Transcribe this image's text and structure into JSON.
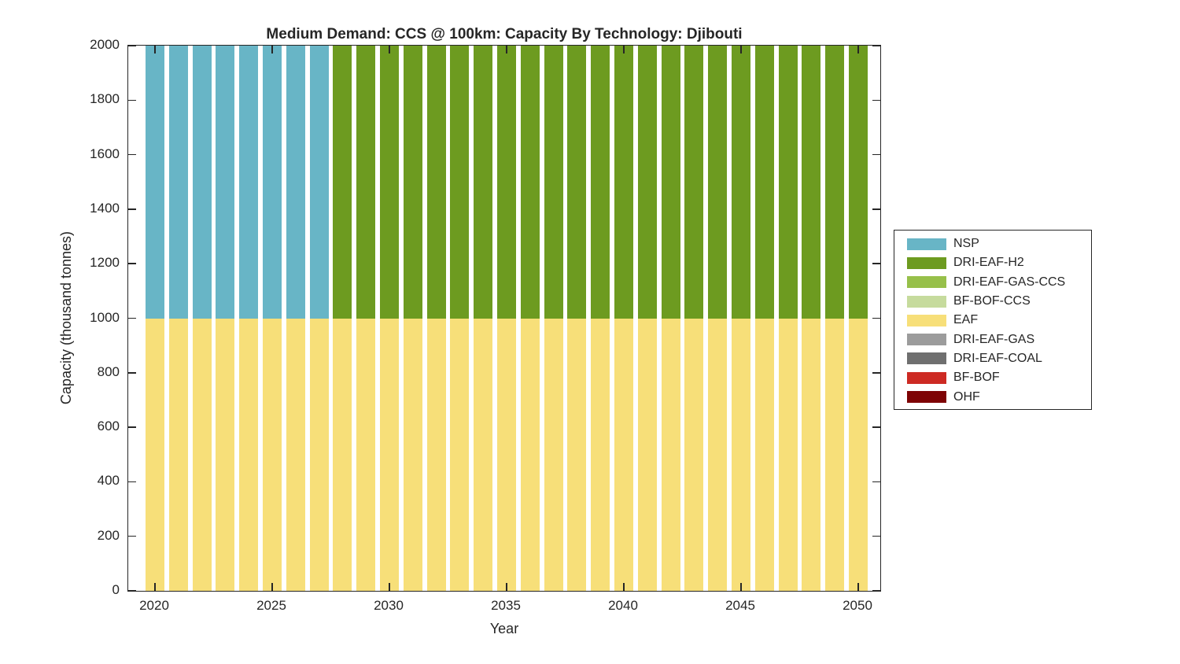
{
  "chart_data": {
    "type": "bar",
    "stacked": true,
    "title": "Medium Demand: CCS @ 100km: Capacity By Technology: Djibouti",
    "xlabel": "Year",
    "ylabel": "Capacity (thousand tonnes)",
    "grid": false,
    "legend_position": "right-outside",
    "ylim": [
      0,
      2000
    ],
    "xticks": [
      2020,
      2025,
      2030,
      2035,
      2040,
      2045,
      2050
    ],
    "yticks": [
      0,
      200,
      400,
      600,
      800,
      1000,
      1200,
      1400,
      1600,
      1800,
      2000
    ],
    "years": [
      2020,
      2021,
      2022,
      2023,
      2024,
      2025,
      2026,
      2027,
      2028,
      2029,
      2030,
      2031,
      2032,
      2033,
      2034,
      2035,
      2036,
      2037,
      2038,
      2039,
      2040,
      2041,
      2042,
      2043,
      2044,
      2045,
      2046,
      2047,
      2048,
      2049,
      2050
    ],
    "stack_order": [
      "EAF",
      "NSP",
      "DRI-EAF-H2",
      "DRI-EAF-GAS-CCS",
      "BF-BOF-CCS",
      "DRI-EAF-GAS",
      "DRI-EAF-COAL",
      "BF-BOF",
      "OHF"
    ],
    "axis_color": "#262626",
    "series": [
      {
        "name": "NSP",
        "color": "#68B5C6",
        "values": [
          1000,
          1000,
          1000,
          1000,
          1000,
          1000,
          1000,
          1000,
          0,
          0,
          0,
          0,
          0,
          0,
          0,
          0,
          0,
          0,
          0,
          0,
          0,
          0,
          0,
          0,
          0,
          0,
          0,
          0,
          0,
          0,
          0
        ]
      },
      {
        "name": "DRI-EAF-H2",
        "color": "#6D9B20",
        "values": [
          0,
          0,
          0,
          0,
          0,
          0,
          0,
          0,
          1000,
          1000,
          1000,
          1000,
          1000,
          1000,
          1000,
          1000,
          1000,
          1000,
          1000,
          1000,
          1000,
          1000,
          1000,
          1000,
          1000,
          1000,
          1000,
          1000,
          1000,
          1000,
          1000
        ]
      },
      {
        "name": "DRI-EAF-GAS-CCS",
        "color": "#97C04A",
        "values": [
          0,
          0,
          0,
          0,
          0,
          0,
          0,
          0,
          0,
          0,
          0,
          0,
          0,
          0,
          0,
          0,
          0,
          0,
          0,
          0,
          0,
          0,
          0,
          0,
          0,
          0,
          0,
          0,
          0,
          0,
          0
        ]
      },
      {
        "name": "BF-BOF-CCS",
        "color": "#C6DB9D",
        "values": [
          0,
          0,
          0,
          0,
          0,
          0,
          0,
          0,
          0,
          0,
          0,
          0,
          0,
          0,
          0,
          0,
          0,
          0,
          0,
          0,
          0,
          0,
          0,
          0,
          0,
          0,
          0,
          0,
          0,
          0,
          0
        ]
      },
      {
        "name": "EAF",
        "color": "#F7DF79",
        "values": [
          1000,
          1000,
          1000,
          1000,
          1000,
          1000,
          1000,
          1000,
          1000,
          1000,
          1000,
          1000,
          1000,
          1000,
          1000,
          1000,
          1000,
          1000,
          1000,
          1000,
          1000,
          1000,
          1000,
          1000,
          1000,
          1000,
          1000,
          1000,
          1000,
          1000,
          1000
        ]
      },
      {
        "name": "DRI-EAF-GAS",
        "color": "#9C9C9C",
        "values": [
          0,
          0,
          0,
          0,
          0,
          0,
          0,
          0,
          0,
          0,
          0,
          0,
          0,
          0,
          0,
          0,
          0,
          0,
          0,
          0,
          0,
          0,
          0,
          0,
          0,
          0,
          0,
          0,
          0,
          0,
          0
        ]
      },
      {
        "name": "DRI-EAF-COAL",
        "color": "#6F6F6F",
        "values": [
          0,
          0,
          0,
          0,
          0,
          0,
          0,
          0,
          0,
          0,
          0,
          0,
          0,
          0,
          0,
          0,
          0,
          0,
          0,
          0,
          0,
          0,
          0,
          0,
          0,
          0,
          0,
          0,
          0,
          0,
          0
        ]
      },
      {
        "name": "BF-BOF",
        "color": "#CD2A23",
        "values": [
          0,
          0,
          0,
          0,
          0,
          0,
          0,
          0,
          0,
          0,
          0,
          0,
          0,
          0,
          0,
          0,
          0,
          0,
          0,
          0,
          0,
          0,
          0,
          0,
          0,
          0,
          0,
          0,
          0,
          0,
          0
        ]
      },
      {
        "name": "OHF",
        "color": "#7E0304",
        "values": [
          0,
          0,
          0,
          0,
          0,
          0,
          0,
          0,
          0,
          0,
          0,
          0,
          0,
          0,
          0,
          0,
          0,
          0,
          0,
          0,
          0,
          0,
          0,
          0,
          0,
          0,
          0,
          0,
          0,
          0,
          0
        ]
      }
    ]
  }
}
